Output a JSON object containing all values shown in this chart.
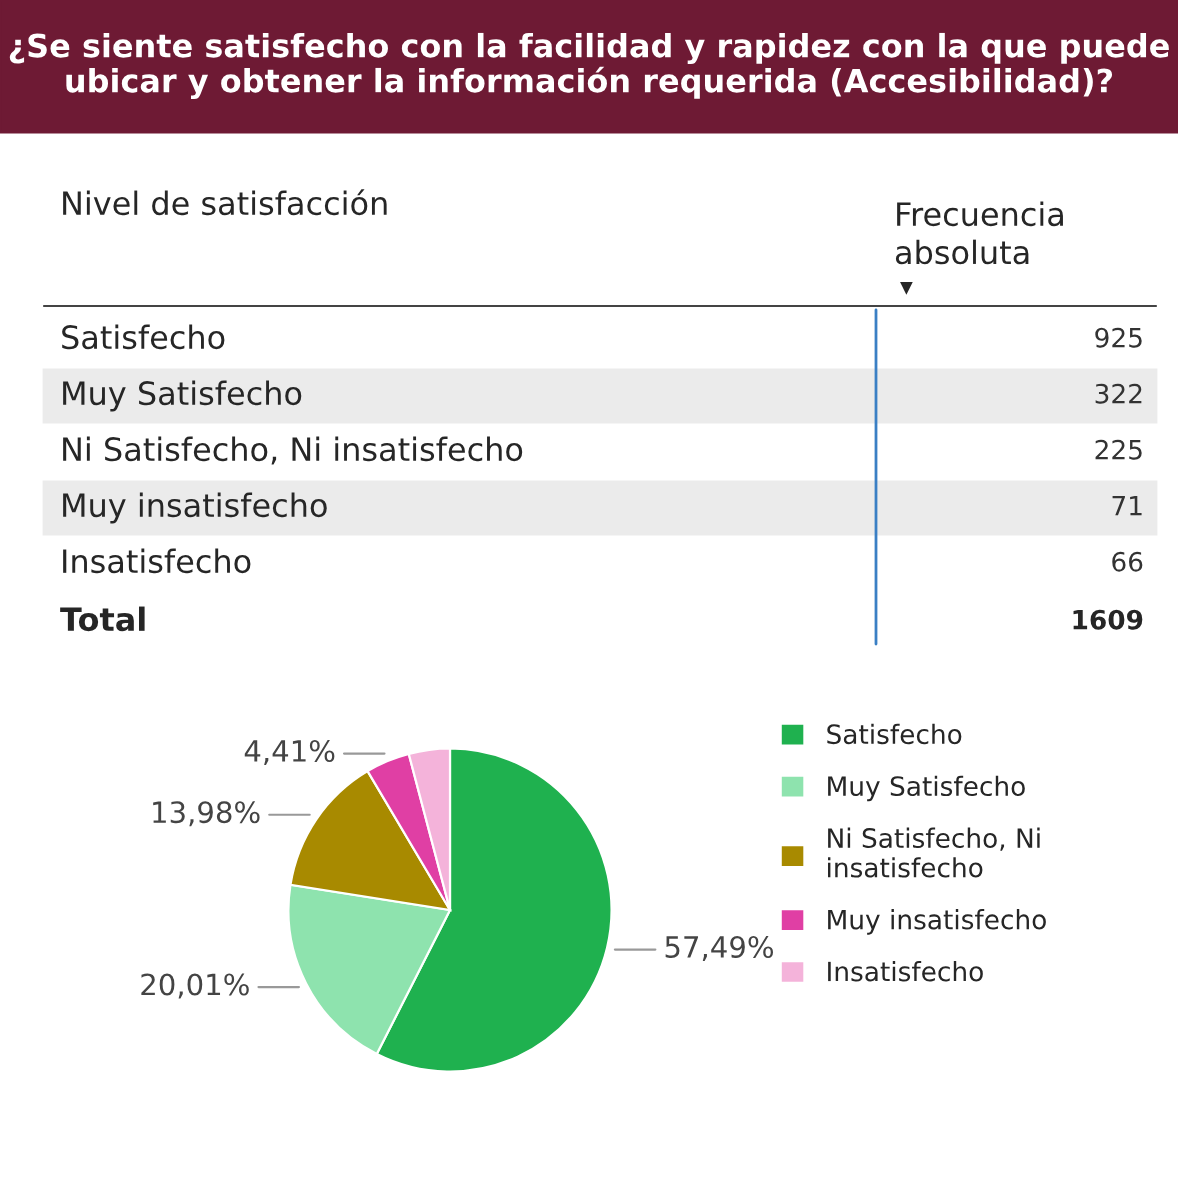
{
  "chart_data": {
    "type": "pie",
    "title": "¿Se siente satisfecho con la facilidad y rapidez con la que puede ubicar y obtener la información requerida (Accesibilidad)?",
    "categories": [
      "Satisfecho",
      "Muy Satisfecho",
      "Ni Satisfecho, Ni insatisfecho",
      "Muy insatisfecho",
      "Insatisfecho"
    ],
    "values": [
      57.49,
      20.01,
      13.98,
      4.41,
      4.11
    ],
    "colors": [
      "#1fb14f",
      "#8ee3ae",
      "#a88a00",
      "#e03fa4",
      "#f4b3da"
    ],
    "data_labels": true,
    "value_labels": [
      "57,49%",
      "20,01%",
      "13,98%",
      "4,41%",
      null
    ],
    "annotations": [
      "Nivel de satisfacción",
      "Frecuencia\nabsoluta",
      "▼",
      "Total",
      "1609",
      "925",
      "322",
      "225",
      "71",
      "66"
    ],
    "legend": "right"
  }
}
